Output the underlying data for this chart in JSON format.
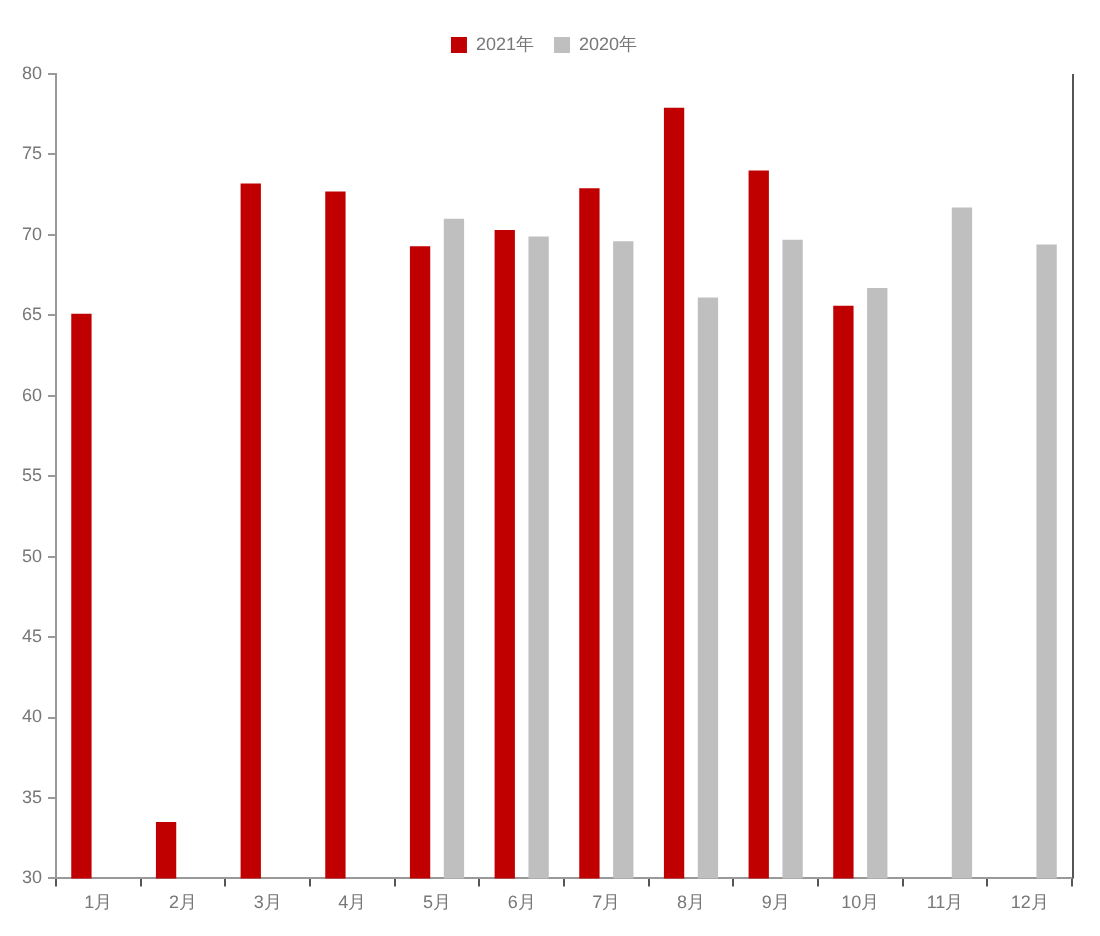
{
  "chart_data": {
    "type": "bar",
    "categories": [
      "1月",
      "2月",
      "3月",
      "4月",
      "5月",
      "6月",
      "7月",
      "8月",
      "9月",
      "10月",
      "11月",
      "12月"
    ],
    "series": [
      {
        "name": "2021年",
        "color": "#c00000",
        "values": [
          65.1,
          33.5,
          73.2,
          72.7,
          69.3,
          70.3,
          72.9,
          77.9,
          74.0,
          65.6,
          null,
          null
        ]
      },
      {
        "name": "2020年",
        "color": "#bfbfbf",
        "values": [
          null,
          null,
          null,
          null,
          71.0,
          69.9,
          69.6,
          66.1,
          69.7,
          66.7,
          71.7,
          69.4
        ]
      }
    ],
    "ylim": [
      30,
      80
    ],
    "yticks": [
      30,
      35,
      40,
      45,
      50,
      55,
      60,
      65,
      70,
      75,
      80
    ],
    "grid": false,
    "legend": "top"
  }
}
